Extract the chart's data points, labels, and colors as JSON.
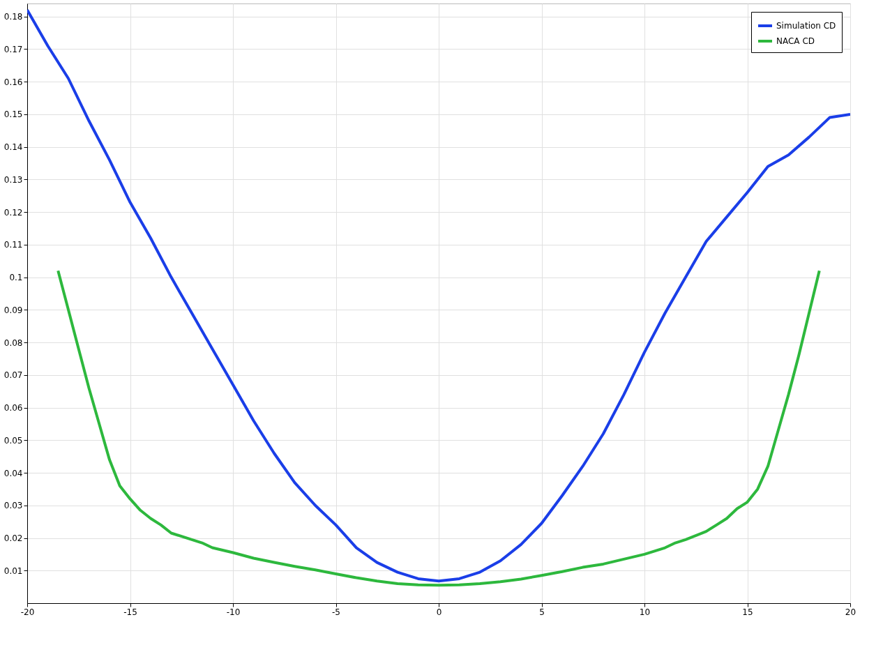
{
  "chart_data": {
    "type": "line",
    "xlim": [
      -20,
      20
    ],
    "ylim": [
      0,
      0.184
    ],
    "xticks": [
      -20,
      -15,
      -10,
      -5,
      0,
      5,
      10,
      15,
      20
    ],
    "yticks": [
      0.01,
      0.02,
      0.03,
      0.04,
      0.05,
      0.06,
      0.07,
      0.08,
      0.09,
      0.1,
      0.11,
      0.12,
      0.13,
      0.14,
      0.15,
      0.16,
      0.17,
      0.18
    ],
    "grid": true,
    "legend": "top right",
    "marker": "none",
    "line_style": "solid",
    "series": [
      {
        "name": "Simulation CD",
        "color": "#1a3ee8",
        "x": [
          -20,
          -19,
          -18,
          -17,
          -16,
          -15,
          -14,
          -13,
          -12,
          -11,
          -10,
          -9,
          -8,
          -7,
          -6,
          -5,
          -4,
          -3,
          -2,
          -1,
          0,
          1,
          2,
          3,
          4,
          5,
          6,
          7,
          8,
          9,
          10,
          11,
          12,
          13,
          14,
          15,
          16,
          17,
          18,
          19,
          20
        ],
        "values": [
          0.182,
          0.171,
          0.161,
          0.148,
          0.136,
          0.123,
          0.112,
          0.1,
          0.089,
          0.078,
          0.067,
          0.056,
          0.046,
          0.037,
          0.03,
          0.024,
          0.017,
          0.0125,
          0.0095,
          0.0075,
          0.0068,
          0.0075,
          0.0095,
          0.013,
          0.018,
          0.0245,
          0.033,
          0.042,
          0.052,
          0.064,
          0.077,
          0.089,
          0.1,
          0.111,
          0.1185,
          0.126,
          0.134,
          0.1375,
          0.143,
          0.149,
          0.15
        ]
      },
      {
        "name": "NACA CD",
        "color": "#2db83d",
        "x": [
          -18.5,
          -18,
          -17.5,
          -17,
          -16.5,
          -16,
          -15.5,
          -15,
          -14.5,
          -14,
          -13.5,
          -13,
          -12,
          -11.5,
          -11,
          -10,
          -9,
          -8,
          -7,
          -6,
          -5,
          -4,
          -3,
          -2,
          -1,
          0,
          1,
          2,
          3,
          4,
          5,
          6,
          7,
          8,
          9,
          10,
          11,
          11.5,
          12,
          13,
          13.5,
          14,
          14.5,
          15,
          15.5,
          16,
          16.5,
          17,
          17.5,
          18,
          18.5
        ],
        "values": [
          0.102,
          0.09,
          0.078,
          0.066,
          0.055,
          0.044,
          0.036,
          0.032,
          0.0285,
          0.026,
          0.024,
          0.0215,
          0.0195,
          0.0185,
          0.017,
          0.0155,
          0.0138,
          0.0125,
          0.0113,
          0.0102,
          0.009,
          0.0078,
          0.0068,
          0.006,
          0.0056,
          0.0055,
          0.0056,
          0.006,
          0.0066,
          0.0074,
          0.0085,
          0.0097,
          0.011,
          0.012,
          0.0135,
          0.015,
          0.017,
          0.0185,
          0.0195,
          0.022,
          0.024,
          0.026,
          0.029,
          0.031,
          0.035,
          0.042,
          0.053,
          0.064,
          0.076,
          0.089,
          0.102
        ]
      }
    ]
  }
}
